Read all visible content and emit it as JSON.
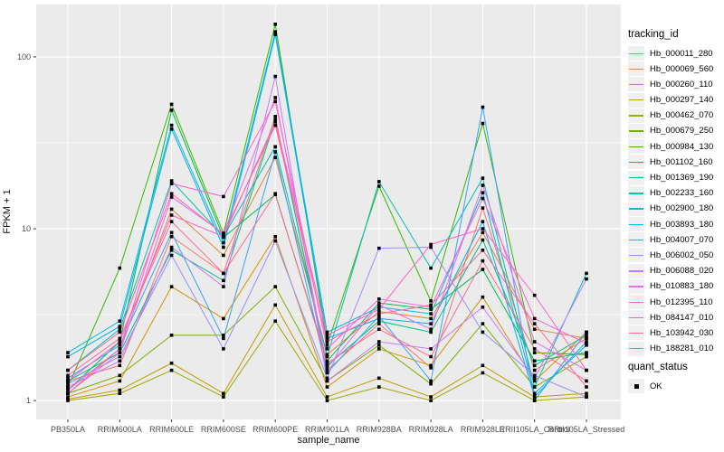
{
  "chart_data": {
    "type": "line",
    "title": "",
    "xlabel": "sample_name",
    "ylabel": "FPKM + 1",
    "y_scale": "log10",
    "y_ticks": [
      1,
      10,
      100
    ],
    "y_minor": [
      3.1623,
      31.623
    ],
    "ylim_log": [
      -0.11,
      2.305
    ],
    "grid": true,
    "legend_position": "right",
    "legend_title": "tracking_id",
    "marker": "filled-square",
    "panel_bg": "#EBEBEB",
    "grid_color": "#FFFFFF",
    "axis_text_color": "#4D4D4D",
    "tick_color": "#333333",
    "marker_color": "#000000",
    "key_bg": "#F0F0F0",
    "categories": [
      "PB350LA",
      "RRIM600LA",
      "RRIM600LE",
      "RRIM600SE",
      "RRIM600PE",
      "RRIM901LA",
      "RRIM928BA",
      "RRIM928LA",
      "RRIM928LE",
      "RRII105LA_Control",
      "RRII105LA_Stressed"
    ],
    "series": [
      {
        "name": "Hb_000011_280",
        "color": "#F8766D",
        "values": [
          1.3,
          1.6,
          9.0,
          5.5,
          45,
          1.5,
          2.8,
          1.55,
          13.2,
          1.5,
          2.3
        ]
      },
      {
        "name": "Hb_000069_560",
        "color": "#EA8331",
        "values": [
          1.1,
          2.0,
          13.0,
          7.0,
          26,
          1.85,
          3.3,
          3.0,
          9.5,
          2.6,
          2.3
        ]
      },
      {
        "name": "Hb_000260_110",
        "color": "#D89000",
        "values": [
          1.05,
          1.3,
          4.6,
          3.0,
          9.0,
          1.2,
          2.0,
          1.6,
          4.0,
          1.3,
          2.5
        ]
      },
      {
        "name": "Hb_000297_140",
        "color": "#C09B00",
        "values": [
          1.02,
          1.15,
          1.65,
          1.1,
          3.6,
          1.05,
          1.35,
          1.05,
          1.6,
          1.05,
          1.1
        ]
      },
      {
        "name": "Hb_000462_070",
        "color": "#A3A500",
        "values": [
          1.0,
          1.1,
          1.5,
          1.05,
          2.9,
          1.0,
          1.2,
          1.0,
          1.45,
          1.0,
          1.05
        ]
      },
      {
        "name": "Hb_000679_250",
        "color": "#7CAE00",
        "values": [
          1.1,
          1.4,
          2.4,
          2.4,
          4.6,
          1.3,
          2.1,
          1.25,
          2.8,
          1.2,
          1.8
        ]
      },
      {
        "name": "Hb_000984_130",
        "color": "#39B600",
        "values": [
          1.2,
          5.9,
          53,
          9.4,
          155,
          2.1,
          17.7,
          3.8,
          41,
          1.9,
          1.85
        ]
      },
      {
        "name": "Hb_001102_160",
        "color": "#00BB4E",
        "values": [
          1.15,
          2.2,
          49,
          8.9,
          15.8,
          1.7,
          3.7,
          3.4,
          5.8,
          1.7,
          1.9
        ]
      },
      {
        "name": "Hb_001369_190",
        "color": "#00C087",
        "values": [
          1.3,
          1.9,
          7.5,
          5.0,
          43,
          1.6,
          2.9,
          2.5,
          8.6,
          1.6,
          2.4
        ]
      },
      {
        "name": "Hb_002233_160",
        "color": "#00C0B2",
        "values": [
          1.5,
          2.6,
          19,
          9.0,
          30,
          1.8,
          18.8,
          5.9,
          19.7,
          1.2,
          5.5
        ]
      },
      {
        "name": "Hb_002900_180",
        "color": "#00BCD8",
        "values": [
          1.9,
          2.9,
          40,
          8.3,
          140,
          2.5,
          3.5,
          3.2,
          16.2,
          1.1,
          2.1
        ]
      },
      {
        "name": "Hb_003893_180",
        "color": "#00B0F6",
        "values": [
          1.8,
          2.7,
          38,
          7.8,
          135,
          2.3,
          3.0,
          2.8,
          11.0,
          1.05,
          2.2
        ]
      },
      {
        "name": "Hb_004007_070",
        "color": "#35A2FF",
        "values": [
          1.35,
          2.1,
          9.5,
          2.3,
          28,
          1.45,
          3.1,
          1.3,
          51,
          1.0,
          2.5
        ]
      },
      {
        "name": "Hb_006002_050",
        "color": "#9590FF",
        "values": [
          1.25,
          1.8,
          7.0,
          2.0,
          8.5,
          1.35,
          7.7,
          7.8,
          2.5,
          1.4,
          1.05
        ]
      },
      {
        "name": "Hb_006088_020",
        "color": "#C77CFF",
        "values": [
          1.2,
          1.7,
          7.8,
          4.6,
          77,
          1.3,
          2.2,
          2.0,
          3.5,
          1.35,
          5.1
        ]
      },
      {
        "name": "Hb_010883_180",
        "color": "#E76BF3",
        "values": [
          1.1,
          1.9,
          15.3,
          9.4,
          58,
          1.55,
          3.6,
          2.6,
          17.9,
          2.2,
          1.5
        ]
      },
      {
        "name": "Hb_012395_110",
        "color": "#FA62DB",
        "values": [
          1.15,
          2.0,
          18.3,
          15.4,
          55,
          2.0,
          3.9,
          3.5,
          15.0,
          3.0,
          2.15
        ]
      },
      {
        "name": "Hb_084147_010",
        "color": "#FF61C7",
        "values": [
          1.3,
          2.2,
          12.0,
          9.0,
          42,
          2.4,
          3.4,
          8.1,
          10.0,
          4.1,
          1.5
        ]
      },
      {
        "name": "Hb_103942_030",
        "color": "#FF67A4",
        "values": [
          1.5,
          2.5,
          16.0,
          9.3,
          40,
          2.2,
          3.2,
          3.6,
          7.5,
          2.8,
          1.2
        ]
      },
      {
        "name": "Hb_188281_010",
        "color": "#FF6C90",
        "values": [
          1.4,
          2.3,
          11.0,
          5.5,
          16.0,
          1.65,
          2.6,
          1.8,
          6.5,
          2.0,
          1.3
        ]
      }
    ],
    "quant_legend": {
      "title": "quant_status",
      "items": [
        "OK"
      ]
    }
  }
}
